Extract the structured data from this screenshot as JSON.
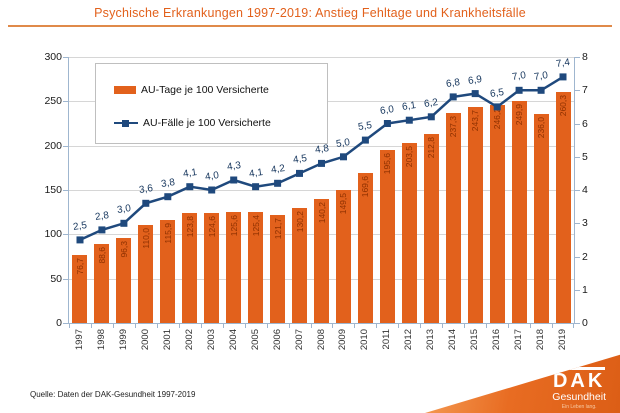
{
  "title": "Psychische Erkrankungen 1997-2019: Anstieg Fehltage und Krankheitsfälle",
  "source": "Quelle: Daten der DAK-Gesundheit 1997-2019",
  "logo": {
    "name": "DAK",
    "subtitle": "Gesundheit",
    "slogan": "Ein Leben lang."
  },
  "colors": {
    "accent_orange": "#E2611C",
    "bar": "#E2611C",
    "bar_label": "#8F3100",
    "line": "#1F497D",
    "line_label": "#17375E",
    "axis": "#9FB6CF",
    "grid": "#D6D6D6",
    "title": "#E2611C"
  },
  "chart_data": {
    "type": "bar+line",
    "title": "Psychische Erkrankungen 1997-2019: Anstieg Fehltage und Krankheitsfälle",
    "categories": [
      1997,
      1998,
      1999,
      2000,
      2001,
      2002,
      2003,
      2004,
      2005,
      2006,
      2007,
      2008,
      2009,
      2010,
      2011,
      2012,
      2013,
      2014,
      2015,
      2016,
      2017,
      2018,
      2019
    ],
    "series": [
      {
        "name": "AU-Tage je 100 Versicherte",
        "type": "bar",
        "axis": "left",
        "color": "#E2611C",
        "values": [
          76.7,
          88.6,
          96.3,
          110.0,
          115.9,
          123.8,
          124.6,
          125.6,
          125.4,
          121.7,
          130.2,
          140.2,
          149.5,
          169.6,
          195.6,
          203.5,
          212.8,
          237.3,
          243.7,
          246.2,
          249.9,
          236.0,
          260.3
        ]
      },
      {
        "name": "AU-Fälle je 100 Versicherte",
        "type": "line",
        "axis": "right",
        "color": "#1F497D",
        "values": [
          2.5,
          2.8,
          3.0,
          3.6,
          3.8,
          4.1,
          4.0,
          4.3,
          4.1,
          4.2,
          4.5,
          4.8,
          5.0,
          5.5,
          6.0,
          6.1,
          6.2,
          6.8,
          6.9,
          6.5,
          7.0,
          7.0,
          7.4
        ]
      }
    ],
    "left_axis": {
      "min": 0,
      "max": 300,
      "step": 50
    },
    "right_axis": {
      "min": 0,
      "max": 8,
      "step": 1
    },
    "grid": true,
    "legend_position": "top-left",
    "number_format": "de-comma-1-decimal"
  }
}
